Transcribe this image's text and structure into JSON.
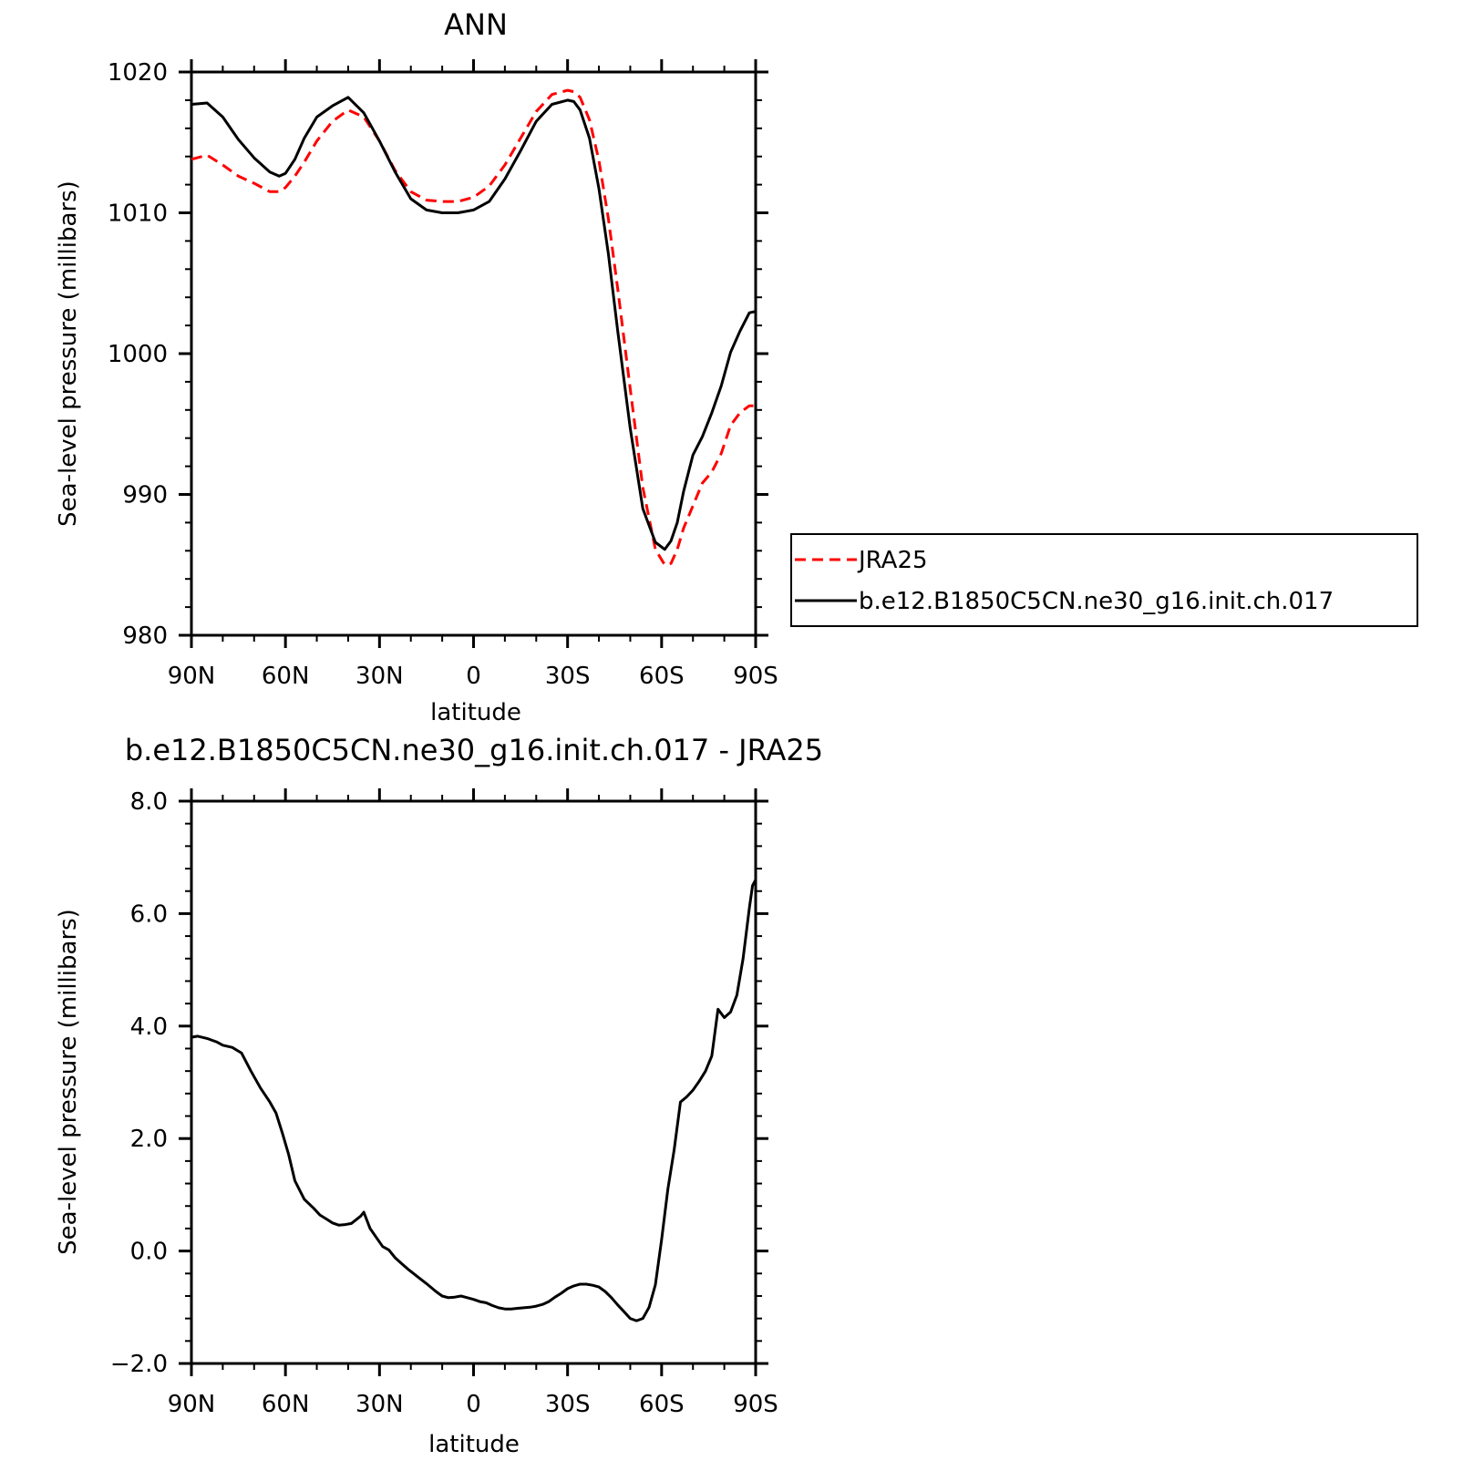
{
  "chart_data": [
    {
      "type": "line",
      "title": "ANN",
      "xlabel": "latitude",
      "ylabel": "Sea-level pressure (millibars)",
      "x_tick_labels": [
        "90N",
        "60N",
        "30N",
        "0",
        "30S",
        "60S",
        "90S"
      ],
      "x_tick_values": [
        -90,
        -60,
        -30,
        0,
        30,
        60,
        90
      ],
      "y_tick_labels": [
        "980",
        "990",
        "1000",
        "1010",
        "1020"
      ],
      "y_tick_values": [
        980,
        990,
        1000,
        1010,
        1020
      ],
      "ylim": [
        980,
        1020
      ],
      "xlim": [
        -90,
        90
      ],
      "legend": "right",
      "series": [
        {
          "name": "JRA25",
          "color": "#ff0000",
          "dash": "dashed",
          "x": [
            -90,
            -85,
            -80,
            -75,
            -70,
            -65,
            -62,
            -60,
            -57,
            -54,
            -50,
            -45,
            -40,
            -35,
            -30,
            -25,
            -20,
            -15,
            -10,
            -5,
            0,
            5,
            10,
            15,
            20,
            25,
            30,
            32,
            34,
            37,
            40,
            43,
            46,
            50,
            54,
            58,
            61,
            63,
            65,
            67,
            70,
            73,
            76,
            79,
            82,
            85,
            88,
            90
          ],
          "y": [
            1013.8,
            1014.1,
            1013.4,
            1012.6,
            1012.1,
            1011.5,
            1011.5,
            1011.8,
            1012.6,
            1013.6,
            1015.1,
            1016.5,
            1017.3,
            1016.8,
            1015.1,
            1013.0,
            1011.5,
            1010.9,
            1010.8,
            1010.8,
            1011.1,
            1011.9,
            1013.4,
            1015.3,
            1017.2,
            1018.4,
            1018.7,
            1018.6,
            1018.2,
            1016.6,
            1013.7,
            1009.6,
            1004.6,
            997.5,
            990.5,
            986.1,
            985.0,
            985.1,
            986.1,
            987.6,
            989.2,
            990.8,
            991.6,
            992.9,
            994.9,
            995.8,
            996.3,
            996.3
          ]
        },
        {
          "name": "b.e12.B1850C5CN.ne30_g16.init.ch.017",
          "color": "#000000",
          "dash": "solid",
          "x": [
            -90,
            -85,
            -80,
            -75,
            -70,
            -65,
            -62,
            -60,
            -57,
            -54,
            -50,
            -45,
            -40,
            -35,
            -30,
            -25,
            -20,
            -15,
            -10,
            -5,
            0,
            5,
            10,
            15,
            20,
            25,
            30,
            32,
            34,
            37,
            40,
            43,
            46,
            50,
            54,
            58,
            61,
            63,
            65,
            67,
            70,
            73,
            76,
            79,
            82,
            85,
            88,
            90
          ],
          "y": [
            1017.7,
            1017.8,
            1016.8,
            1015.2,
            1013.9,
            1012.9,
            1012.6,
            1012.8,
            1013.8,
            1015.3,
            1016.8,
            1017.6,
            1018.2,
            1017.1,
            1015.1,
            1012.9,
            1011.0,
            1010.2,
            1010.0,
            1010.0,
            1010.2,
            1010.8,
            1012.4,
            1014.4,
            1016.5,
            1017.7,
            1018.0,
            1017.9,
            1017.3,
            1015.3,
            1011.7,
            1007.1,
            1001.6,
            994.7,
            989.0,
            986.6,
            986.1,
            986.7,
            988.0,
            990.2,
            992.8,
            994.1,
            995.8,
            997.7,
            1000.1,
            1001.6,
            1002.9,
            1003.0
          ]
        }
      ]
    },
    {
      "type": "line",
      "title": "b.e12.B1850C5CN.ne30_g16.init.ch.017 - JRA25",
      "xlabel": "latitude",
      "ylabel": "Sea-level pressure (millibars)",
      "x_tick_labels": [
        "90N",
        "60N",
        "30N",
        "0",
        "30S",
        "60S",
        "90S"
      ],
      "x_tick_values": [
        -90,
        -60,
        -30,
        0,
        30,
        60,
        90
      ],
      "y_tick_labels": [
        "−2.0",
        "0.0",
        "2.0",
        "4.0",
        "6.0",
        "8.0"
      ],
      "y_tick_values": [
        -2,
        0,
        2,
        4,
        6,
        8
      ],
      "ylim": [
        -2,
        8
      ],
      "xlim": [
        -90,
        90
      ],
      "series": [
        {
          "color": "#000000",
          "dash": "solid",
          "x": [
            -90,
            -88,
            -85,
            -82,
            -80,
            -77,
            -74,
            -71,
            -68,
            -65,
            -63,
            -61,
            -59,
            -57,
            -54,
            -51,
            -49,
            -47,
            -45,
            -43,
            -41,
            -39,
            -36,
            -35,
            -33,
            -31,
            -29,
            -27,
            -25,
            -23,
            -21,
            -18,
            -15,
            -12,
            -10,
            -8,
            -6,
            -4,
            -2,
            0,
            2,
            4,
            6,
            8,
            10,
            12,
            14,
            16,
            18,
            20,
            22,
            24,
            26,
            28,
            30,
            32,
            34,
            36,
            38,
            40,
            42,
            44,
            46,
            48,
            50,
            52,
            54,
            56,
            58,
            60,
            62,
            64,
            66,
            68,
            70,
            72,
            74,
            76,
            78,
            80,
            82,
            84,
            86,
            88,
            89,
            90
          ],
          "y": [
            3.8,
            3.82,
            3.78,
            3.72,
            3.66,
            3.62,
            3.52,
            3.2,
            2.9,
            2.65,
            2.45,
            2.1,
            1.72,
            1.25,
            0.92,
            0.76,
            0.64,
            0.57,
            0.5,
            0.46,
            0.47,
            0.49,
            0.62,
            0.69,
            0.4,
            0.24,
            0.08,
            0.02,
            -0.12,
            -0.22,
            -0.32,
            -0.45,
            -0.58,
            -0.72,
            -0.8,
            -0.83,
            -0.82,
            -0.8,
            -0.83,
            -0.86,
            -0.9,
            -0.92,
            -0.97,
            -1.01,
            -1.03,
            -1.03,
            -1.02,
            -1.01,
            -1.0,
            -0.98,
            -0.95,
            -0.9,
            -0.82,
            -0.75,
            -0.67,
            -0.62,
            -0.59,
            -0.59,
            -0.61,
            -0.64,
            -0.72,
            -0.83,
            -0.96,
            -1.08,
            -1.2,
            -1.24,
            -1.2,
            -1.0,
            -0.6,
            0.2,
            1.1,
            1.8,
            2.65,
            2.74,
            2.86,
            3.02,
            3.2,
            3.47,
            4.3,
            4.15,
            4.25,
            4.55,
            5.2,
            6.1,
            6.5,
            6.6
          ]
        }
      ]
    }
  ]
}
